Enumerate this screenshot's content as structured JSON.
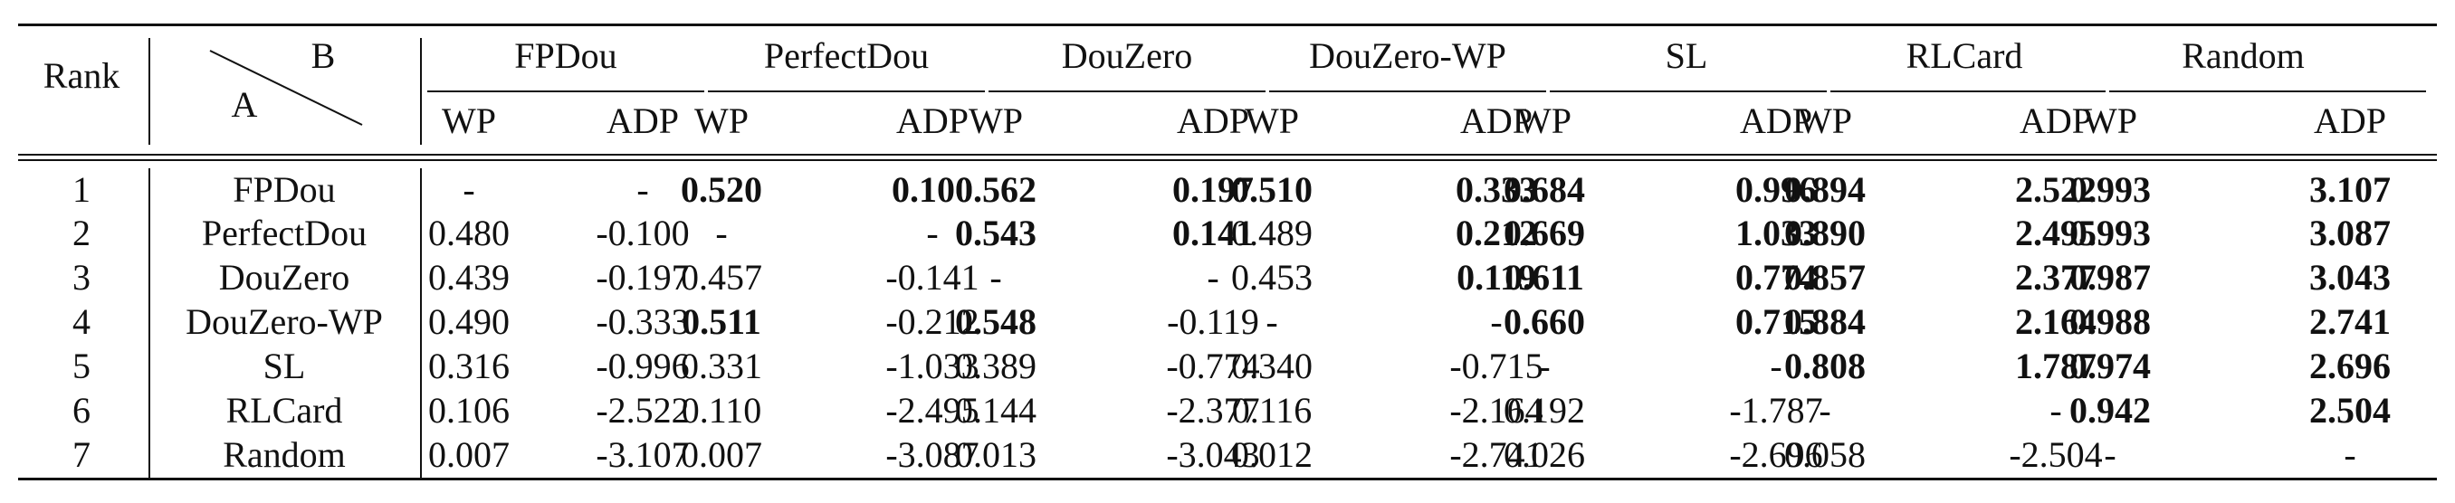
{
  "header": {
    "rank_label": "Rank",
    "corner_top": "B",
    "corner_bottom": "A",
    "groups": [
      "FPDou",
      "PerfectDou",
      "DouZero",
      "DouZero-WP",
      "SL",
      "RLCard",
      "Random"
    ],
    "subheaders": [
      "WP",
      "ADP"
    ]
  },
  "rows": [
    {
      "rank": "1",
      "name": "FPDou",
      "cells": [
        [
          "-",
          false
        ],
        [
          "-",
          false
        ],
        [
          "0.520",
          true
        ],
        [
          "0.100",
          true
        ],
        [
          "0.562",
          true
        ],
        [
          "0.197",
          true
        ],
        [
          "0.510",
          true
        ],
        [
          "0.333",
          true
        ],
        [
          "0.684",
          true
        ],
        [
          "0.996",
          true
        ],
        [
          "0.894",
          true
        ],
        [
          "2.522",
          true
        ],
        [
          "0.993",
          true
        ],
        [
          "3.107",
          true
        ]
      ]
    },
    {
      "rank": "2",
      "name": "PerfectDou",
      "cells": [
        [
          "0.480",
          false
        ],
        [
          "-0.100",
          false
        ],
        [
          "-",
          false
        ],
        [
          "-",
          false
        ],
        [
          "0.543",
          true
        ],
        [
          "0.141",
          true
        ],
        [
          "0.489",
          false
        ],
        [
          "0.212",
          true
        ],
        [
          "0.669",
          true
        ],
        [
          "1.033",
          true
        ],
        [
          "0.890",
          true
        ],
        [
          "2.495",
          true
        ],
        [
          "0.993",
          true
        ],
        [
          "3.087",
          true
        ]
      ]
    },
    {
      "rank": "3",
      "name": "DouZero",
      "cells": [
        [
          "0.439",
          false
        ],
        [
          "-0.197",
          false
        ],
        [
          "0.457",
          false
        ],
        [
          "-0.141",
          false
        ],
        [
          "-",
          false
        ],
        [
          "-",
          false
        ],
        [
          "0.453",
          false
        ],
        [
          "0.119",
          true
        ],
        [
          "0.611",
          true
        ],
        [
          "0.774",
          true
        ],
        [
          "0.857",
          true
        ],
        [
          "2.377",
          true
        ],
        [
          "0.987",
          true
        ],
        [
          "3.043",
          true
        ]
      ]
    },
    {
      "rank": "4",
      "name": "DouZero-WP",
      "cells": [
        [
          "0.490",
          false
        ],
        [
          "-0.333",
          false
        ],
        [
          "0.511",
          true
        ],
        [
          "-0.212",
          false
        ],
        [
          "0.548",
          true
        ],
        [
          "-0.119",
          false
        ],
        [
          "-",
          false
        ],
        [
          "-",
          false
        ],
        [
          "0.660",
          true
        ],
        [
          "0.715",
          true
        ],
        [
          "0.884",
          true
        ],
        [
          "2.164",
          true
        ],
        [
          "0.988",
          true
        ],
        [
          "2.741",
          true
        ]
      ]
    },
    {
      "rank": "5",
      "name": "SL",
      "cells": [
        [
          "0.316",
          false
        ],
        [
          "-0.996",
          false
        ],
        [
          "0.331",
          false
        ],
        [
          "-1.033",
          false
        ],
        [
          "0.389",
          false
        ],
        [
          "-0.774",
          false
        ],
        [
          "0.340",
          false
        ],
        [
          "-0.715",
          false
        ],
        [
          "-",
          false
        ],
        [
          "-",
          false
        ],
        [
          "0.808",
          true
        ],
        [
          "1.787",
          true
        ],
        [
          "0.974",
          true
        ],
        [
          "2.696",
          true
        ]
      ]
    },
    {
      "rank": "6",
      "name": "RLCard",
      "cells": [
        [
          "0.106",
          false
        ],
        [
          "-2.522",
          false
        ],
        [
          "0.110",
          false
        ],
        [
          "-2.495",
          false
        ],
        [
          "0.144",
          false
        ],
        [
          "-2.377",
          false
        ],
        [
          "0.116",
          false
        ],
        [
          "-2.164",
          false
        ],
        [
          "0.192",
          false
        ],
        [
          "-1.787",
          false
        ],
        [
          "-",
          false
        ],
        [
          "-",
          false
        ],
        [
          "0.942",
          true
        ],
        [
          "2.504",
          true
        ]
      ]
    },
    {
      "rank": "7",
      "name": "Random",
      "cells": [
        [
          "0.007",
          false
        ],
        [
          "-3.107",
          false
        ],
        [
          "0.007",
          false
        ],
        [
          "-3.087",
          false
        ],
        [
          "0.013",
          false
        ],
        [
          "-3.043",
          false
        ],
        [
          "0.012",
          false
        ],
        [
          "-2.741",
          false
        ],
        [
          "0.026",
          false
        ],
        [
          "-2.696",
          false
        ],
        [
          "0.058",
          false
        ],
        [
          "-2.504",
          false
        ],
        [
          "-",
          false
        ],
        [
          "-",
          false
        ]
      ]
    }
  ]
}
